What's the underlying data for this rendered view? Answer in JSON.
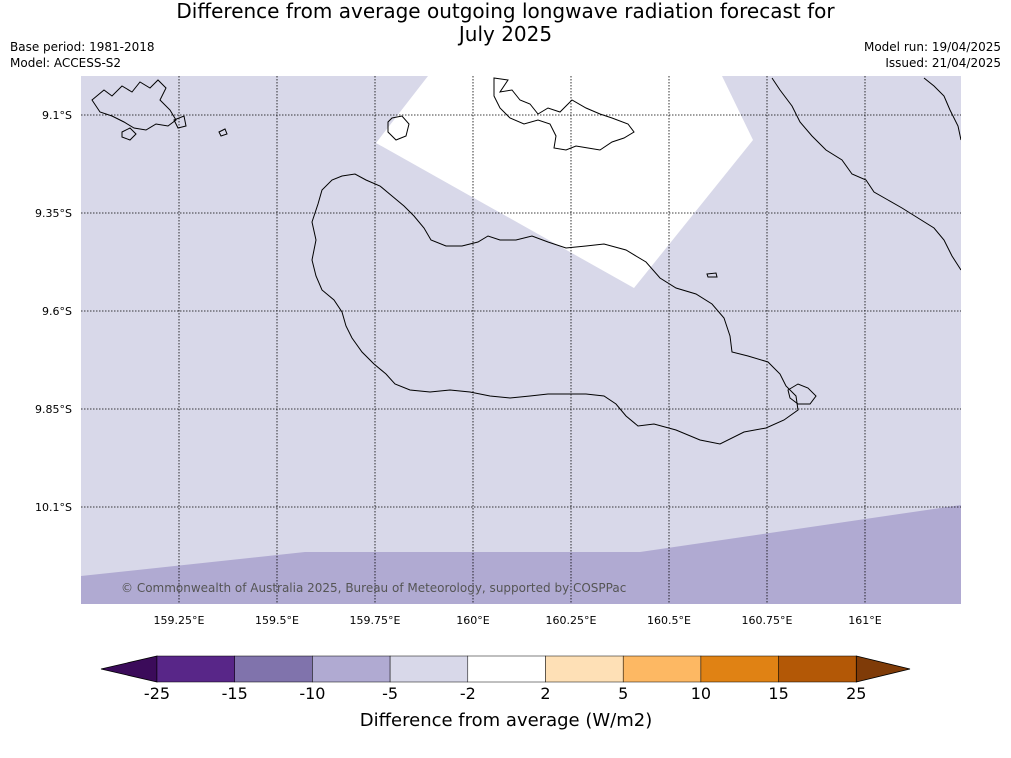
{
  "header": {
    "title_line1": "Difference from average outgoing longwave radiation forecast for",
    "title_line2": "July 2025",
    "base_period": "Base period: 1981-2018",
    "model": "Model: ACCESS-S2",
    "model_run": "Model run: 19/04/2025",
    "issued": "Issued: 21/04/2025"
  },
  "map": {
    "lat_labels": [
      "9.1°S",
      "9.35°S",
      "9.6°S",
      "9.85°S",
      "10.1°S"
    ],
    "lon_labels": [
      "159.25°E",
      "159.5°E",
      "159.75°E",
      "160°E",
      "160.25°E",
      "160.5°E",
      "160.75°E",
      "161°E"
    ],
    "copyright": "© Commonwealth of Australia 2025, Bureau of Meteorology, supported by COSPPac",
    "grid": true,
    "fill_colors": {
      "-5_to_-2": "#d8d8e9",
      "-10_to_-5": "#b0aad2",
      "-2_to_2": "#ffffff"
    }
  },
  "colorbar": {
    "label": "Difference from average (W/m2)",
    "ticks": [
      "-25",
      "-15",
      "-10",
      "-5",
      "-2",
      "2",
      "5",
      "10",
      "15",
      "25"
    ],
    "colors": [
      "#3b0b5a",
      "#582688",
      "#8073ac",
      "#b0aad2",
      "#d8d8e9",
      "#ffffff",
      "#fee0b6",
      "#fdb863",
      "#e08214",
      "#b35806",
      "#7f3b08"
    ]
  }
}
